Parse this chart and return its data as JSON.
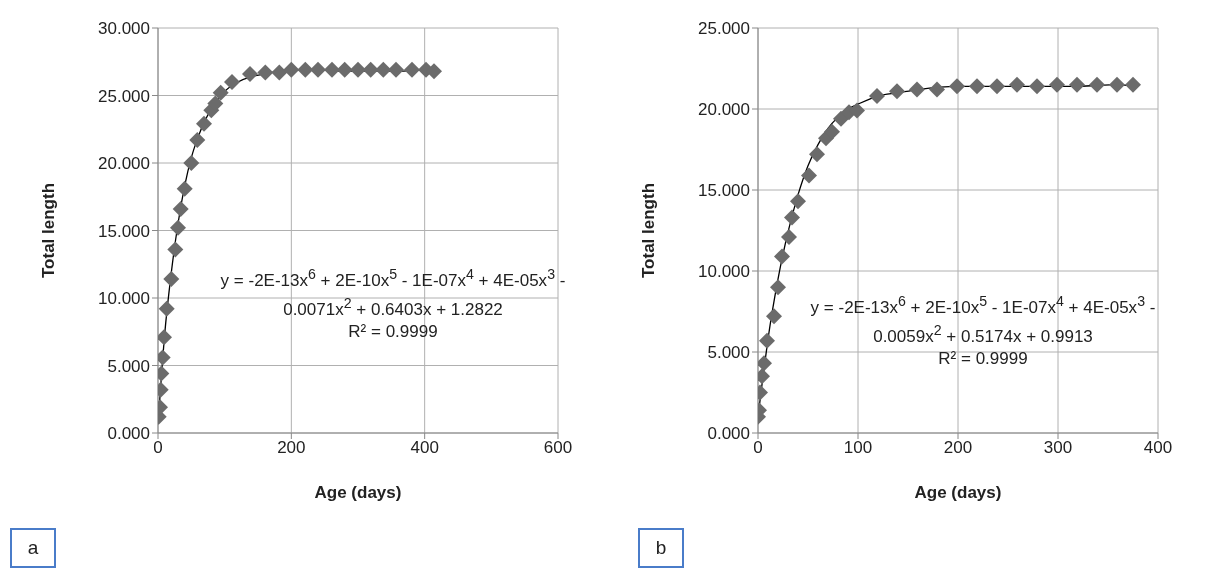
{
  "chart_data": [
    {
      "type": "scatter",
      "xlabel": "Age (days)",
      "ylabel": "Total length",
      "xlim": [
        0,
        600
      ],
      "xticks": [
        0,
        200,
        400,
        600
      ],
      "ylim": [
        0,
        30
      ],
      "yticks": [
        {
          "value": 0,
          "label": "0.000"
        },
        {
          "value": 5,
          "label": "5.000"
        },
        {
          "value": 10,
          "label": "10.000"
        },
        {
          "value": 15,
          "label": "15.000"
        },
        {
          "value": 20,
          "label": "20.000"
        },
        {
          "value": 25,
          "label": "25.000"
        },
        {
          "value": 30,
          "label": "30.000"
        }
      ],
      "grid": true,
      "series": [
        {
          "marker": "diamond",
          "color": "#6b6b6b",
          "x": [
            1,
            3,
            4,
            5,
            7,
            9,
            13,
            20,
            26,
            30,
            34,
            40,
            50,
            59,
            69,
            80,
            86,
            94,
            111,
            138,
            161,
            182,
            200,
            221,
            240,
            261,
            280,
            300,
            319,
            338,
            357,
            381,
            402,
            414
          ],
          "values": [
            1.2,
            1.9,
            3.2,
            4.4,
            5.6,
            7.1,
            9.2,
            11.4,
            13.6,
            15.2,
            16.6,
            18.1,
            20.0,
            21.7,
            22.9,
            23.9,
            24.4,
            25.2,
            26.0,
            26.6,
            26.7,
            26.7,
            26.9,
            26.9,
            26.9,
            26.9,
            26.9,
            26.9,
            26.9,
            26.9,
            26.9,
            26.9,
            26.9,
            26.8
          ]
        },
        {
          "type": "line",
          "marker": "none",
          "color": "#000000",
          "x": [
            1,
            10,
            20,
            30,
            40,
            50,
            60,
            70,
            80,
            90,
            100,
            120,
            140,
            160,
            200,
            240,
            280,
            320,
            360,
            400,
            414
          ],
          "values": [
            1.3,
            7.3,
            11.9,
            15.5,
            18.3,
            20.4,
            21.9,
            23.1,
            24.0,
            24.7,
            25.3,
            26.0,
            26.4,
            26.6,
            26.9,
            26.9,
            26.8,
            26.8,
            26.8,
            26.9,
            26.8
          ]
        }
      ],
      "annotations": [
        "y = -2E-13x$^{6}$ + 2E-10x$^{5}$ - 1E-07x$^{4}$ + 4E-05x$^{3}$ - 0.0071x$^{2}$ + 0.6403x + 1.2822",
        "R² = 0.9999",
        "a"
      ]
    },
    {
      "type": "scatter",
      "xlabel": "Age (days)",
      "ylabel": "Total length",
      "xlim": [
        0,
        400
      ],
      "xticks": [
        0,
        100,
        200,
        300,
        400
      ],
      "ylim": [
        0,
        25
      ],
      "yticks": [
        {
          "value": 0,
          "label": "0.000"
        },
        {
          "value": 5,
          "label": "5.000"
        },
        {
          "value": 10,
          "label": "10.000"
        },
        {
          "value": 15,
          "label": "15.000"
        },
        {
          "value": 20,
          "label": "20.000"
        },
        {
          "value": 25,
          "label": "25.000"
        }
      ],
      "grid": true,
      "series": [
        {
          "marker": "diamond",
          "color": "#6b6b6b",
          "x": [
            0,
            1,
            2,
            4,
            6,
            9,
            16,
            20,
            24,
            31,
            34,
            40,
            51,
            59,
            68,
            74,
            83,
            91,
            99,
            119,
            139,
            159,
            179,
            199,
            219,
            239,
            259,
            279,
            299,
            319,
            339,
            359,
            375
          ],
          "values": [
            1.0,
            1.4,
            2.5,
            3.5,
            4.3,
            5.7,
            7.2,
            9.0,
            10.9,
            12.1,
            13.3,
            14.3,
            15.9,
            17.2,
            18.2,
            18.6,
            19.4,
            19.8,
            19.9,
            20.8,
            21.1,
            21.2,
            21.2,
            21.4,
            21.4,
            21.4,
            21.5,
            21.4,
            21.5,
            21.5,
            21.5,
            21.5,
            21.5
          ]
        },
        {
          "type": "line",
          "marker": "none",
          "color": "#000000",
          "x": [
            0,
            5,
            10,
            20,
            30,
            40,
            50,
            60,
            70,
            80,
            90,
            100,
            120,
            140,
            160,
            200,
            240,
            280,
            320,
            360,
            375
          ],
          "values": [
            1.0,
            3.5,
            5.8,
            9.5,
            12.4,
            14.7,
            16.5,
            17.8,
            18.8,
            19.5,
            20.0,
            20.3,
            20.8,
            21.0,
            21.2,
            21.4,
            21.4,
            21.4,
            21.4,
            21.5,
            21.4
          ]
        }
      ],
      "annotations": [
        "y = -2E-13x$^{6}$ + 2E-10x$^{5}$ - 1E-07x$^{4}$ + 4E-05x$^{3}$ - 0.0059x$^{2}$ + 0.5174x + 0.9913",
        "R² = 0.9999",
        "b"
      ]
    }
  ]
}
